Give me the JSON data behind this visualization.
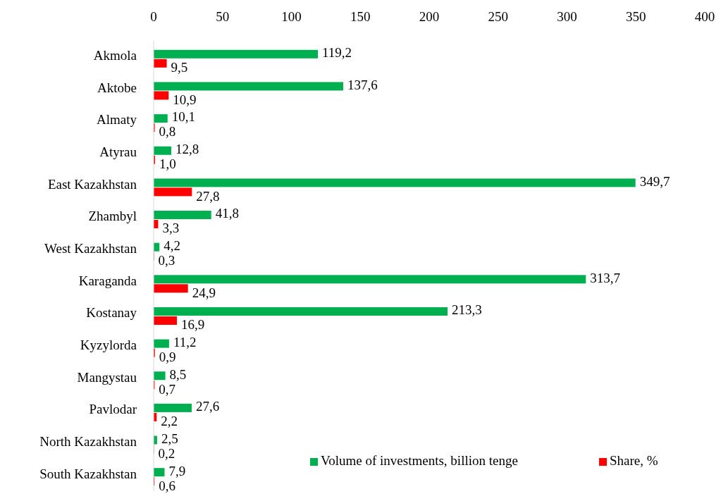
{
  "chart_data": {
    "type": "bar",
    "orientation": "horizontal",
    "categories": [
      "Akmola",
      "Aktobe",
      "Almaty",
      "Atyrau",
      "East Kazakhstan",
      "Zhambyl",
      "West Kazakhstan",
      "Karaganda",
      "Kostanay",
      "Kyzylorda",
      "Mangystau",
      "Pavlodar",
      "North Kazakhstan",
      "South Kazakhstan"
    ],
    "series": [
      {
        "name": "Volume of investments, billion tenge",
        "color": "#00b050",
        "values": [
          119.2,
          137.6,
          10.1,
          12.8,
          349.7,
          41.8,
          4.2,
          313.7,
          213.3,
          11.2,
          8.5,
          27.6,
          2.5,
          7.9
        ],
        "value_labels": [
          "119,2",
          "137,6",
          "10,1",
          "12,8",
          "349,7",
          "41,8",
          "4,2",
          "313,7",
          "213,3",
          "11,2",
          "8,5",
          "27,6",
          "2,5",
          "7,9"
        ]
      },
      {
        "name": "Share, %",
        "color": "#ff0000",
        "values": [
          9.5,
          10.9,
          0.8,
          1.0,
          27.8,
          3.3,
          0.3,
          24.9,
          16.9,
          0.9,
          0.7,
          2.2,
          0.2,
          0.6
        ],
        "value_labels": [
          "9,5",
          "10,9",
          "0,8",
          "1,0",
          "27,8",
          "3,3",
          "0,3",
          "24,9",
          "16,9",
          "0,9",
          "0,7",
          "2,2",
          "0,2",
          "0,6"
        ]
      }
    ],
    "xlim": [
      0,
      400
    ],
    "xticks": [
      0,
      50,
      100,
      150,
      200,
      250,
      300,
      350,
      400
    ],
    "grid": false,
    "legend": "bottom right"
  }
}
